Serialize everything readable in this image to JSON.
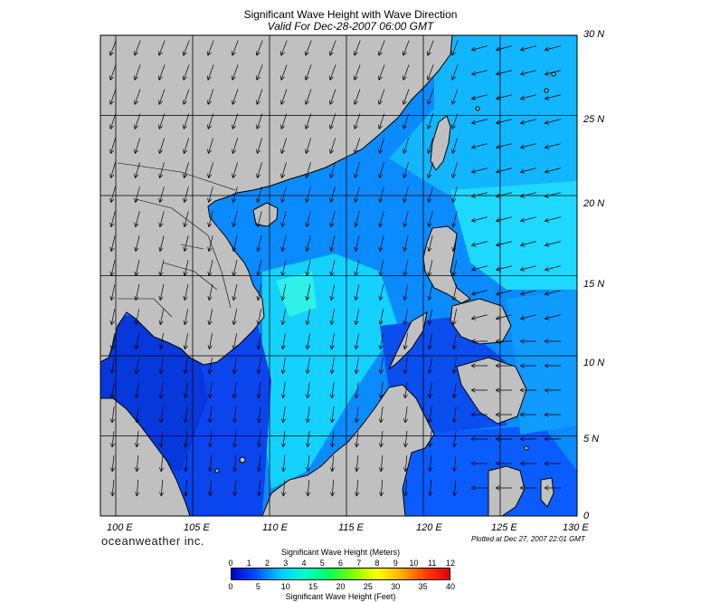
{
  "header": {
    "title": "Significant Wave Height with Wave Direction",
    "subtitle": "Valid For Dec-28-2007 06:00 GMT"
  },
  "map": {
    "lon_range": [
      99,
      130
    ],
    "lat_range": [
      0,
      30
    ],
    "lat_labels": [
      "30 N",
      "25 N",
      "20 N",
      "15 N",
      "10 N",
      "5 N",
      "0"
    ],
    "lon_labels": [
      "100 E",
      "105 E",
      "110 E",
      "115 E",
      "120 E",
      "125 E",
      "130 E"
    ],
    "colors": {
      "land": "#c0c0c0",
      "coast": "#000000",
      "grid": "#000000",
      "low_wave": "#0a36e6",
      "mid_wave": "#0aa6ff",
      "high_wave": "#22ffe8",
      "deep_low": "#0000aa"
    }
  },
  "footer": {
    "brand": "oceanweather inc.",
    "plotted": "Plotted at Dec 27, 2007 22:01 GMT"
  },
  "colorbar": {
    "meters_title": "Significant Wave Height (Meters)",
    "feet_title": "Significant Wave Height (Feet)",
    "meters_ticks": [
      "0",
      "1",
      "2",
      "3",
      "4",
      "5",
      "6",
      "7",
      "8",
      "9",
      "10",
      "11",
      "12"
    ],
    "feet_ticks": [
      "0",
      "5",
      "10",
      "15",
      "20",
      "25",
      "30",
      "35",
      "40"
    ],
    "gradient": [
      "#0000c8",
      "#0050ff",
      "#00c8ff",
      "#00ffd0",
      "#00ff60",
      "#80ff00",
      "#ffff00",
      "#ffb000",
      "#ff4000",
      "#e00000"
    ]
  }
}
